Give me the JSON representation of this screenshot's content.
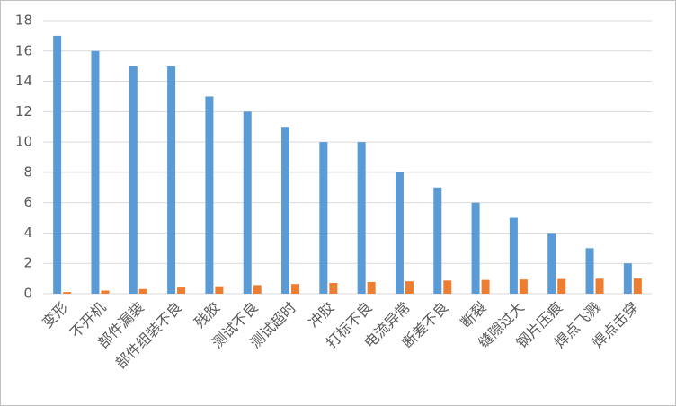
{
  "chart_data": {
    "type": "bar",
    "categories": [
      "变形",
      "不开机",
      "部件漏装",
      "部件组装不良",
      "残胶",
      "测试不良",
      "测试超时",
      "冲胶",
      "打标不良",
      "电流异常",
      "断差不良",
      "断裂",
      "缝隙过大",
      "钢片压痕",
      "焊点飞溅",
      "焊点击穿"
    ],
    "series": [
      {
        "color": "#5b9bd5",
        "values": [
          17,
          16,
          15,
          15,
          13,
          12,
          11,
          10,
          10,
          8,
          7,
          6,
          5,
          4,
          3,
          2
        ]
      },
      {
        "color": "#ed7d31",
        "values": [
          0.11,
          0.21,
          0.31,
          0.41,
          0.49,
          0.57,
          0.64,
          0.71,
          0.77,
          0.82,
          0.87,
          0.91,
          0.94,
          0.97,
          0.99,
          1.0
        ]
      }
    ],
    "ylim": [
      0,
      18
    ],
    "yticks": [
      0,
      2,
      4,
      6,
      8,
      10,
      12,
      14,
      16,
      18
    ],
    "grid": true
  }
}
